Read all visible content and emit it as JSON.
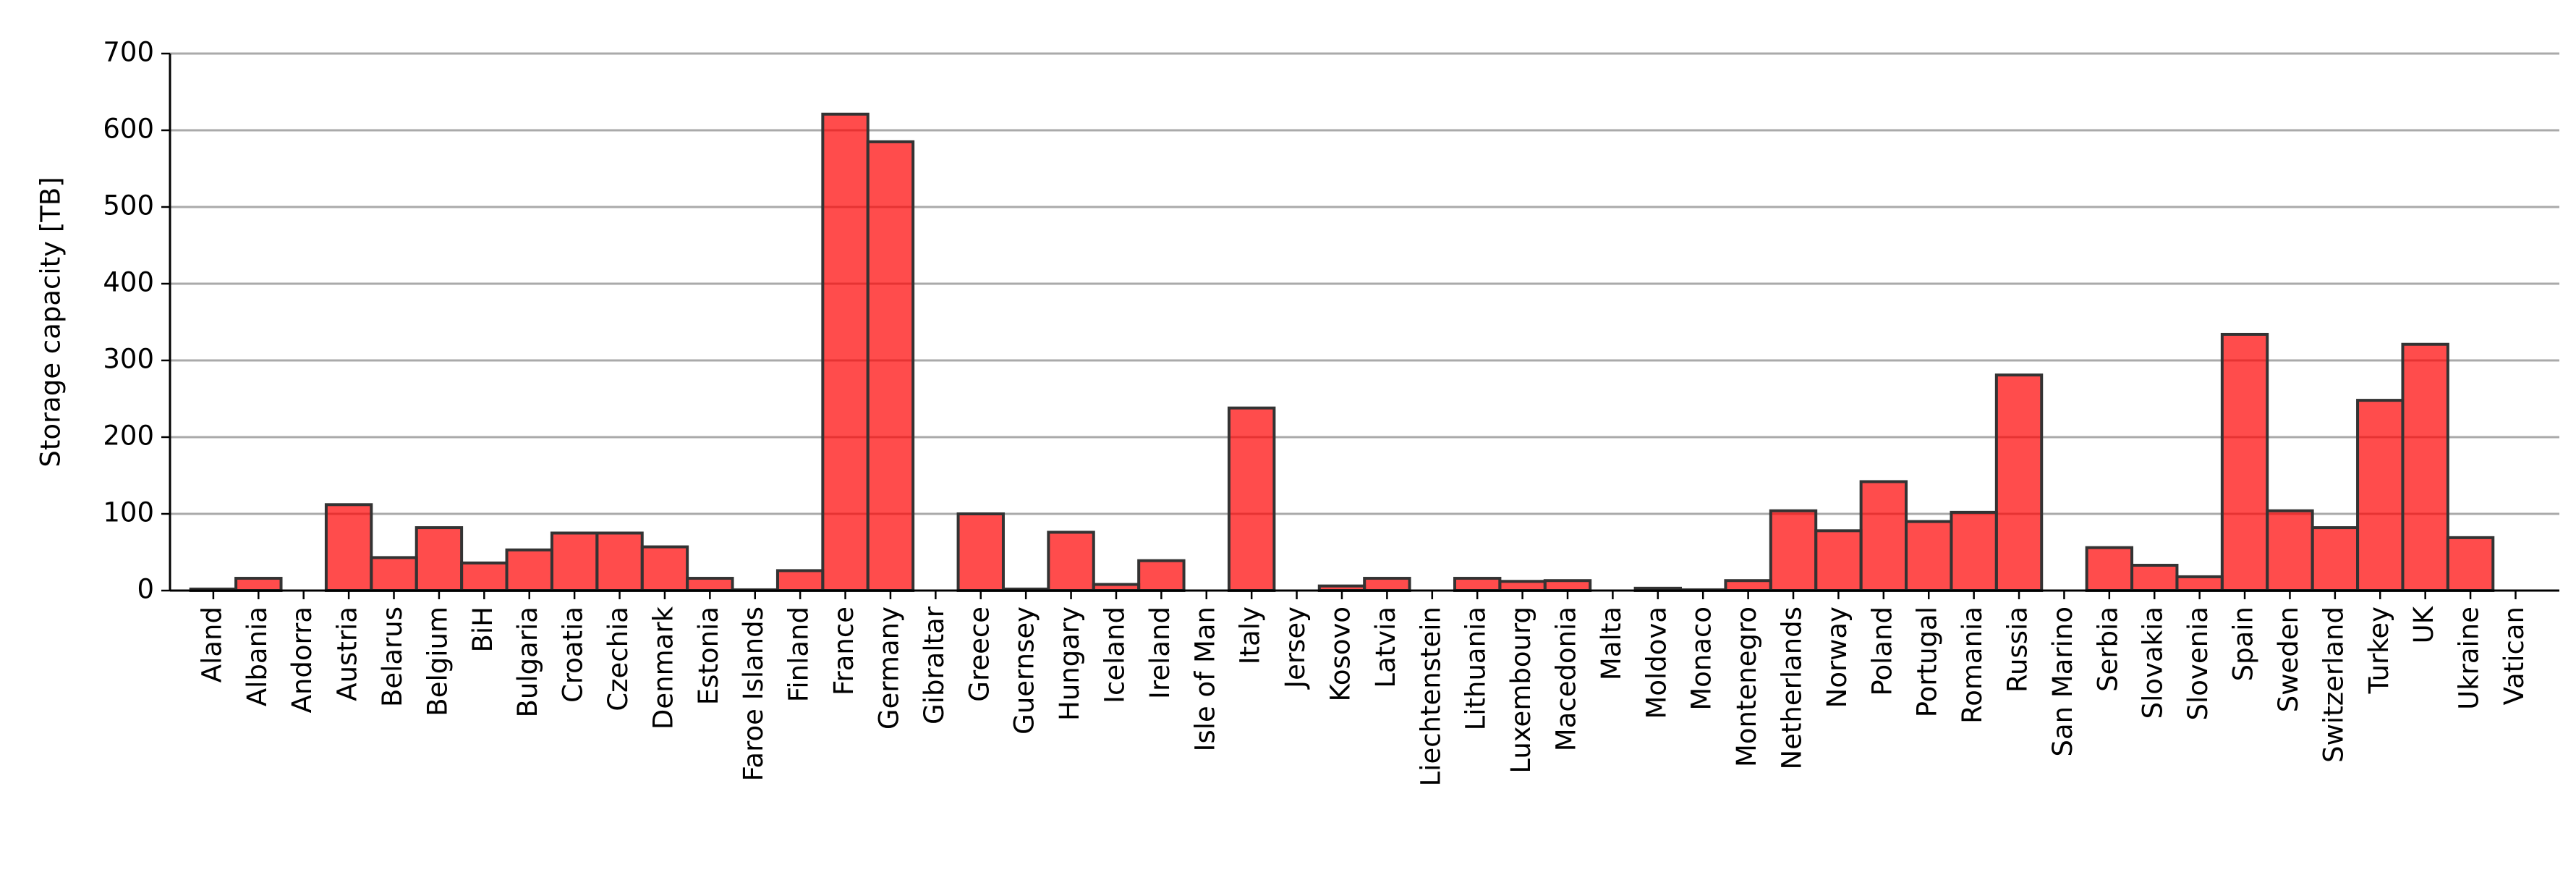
{
  "chart_data": {
    "type": "bar",
    "y_label": "Storage capacity [TB]",
    "categories": [
      "Aland",
      "Albania",
      "Andorra",
      "Austria",
      "Belarus",
      "Belgium",
      "BiH",
      "Bulgaria",
      "Croatia",
      "Czechia",
      "Denmark",
      "Estonia",
      "Faroe Islands",
      "Finland",
      "France",
      "Germany",
      "Gibraltar",
      "Greece",
      "Guernsey",
      "Hungary",
      "Iceland",
      "Ireland",
      "Isle of Man",
      "Italy",
      "Jersey",
      "Kosovo",
      "Latvia",
      "Liechtenstein",
      "Lithuania",
      "Luxembourg",
      "Macedonia",
      "Malta",
      "Moldova",
      "Monaco",
      "Montenegro",
      "Netherlands",
      "Norway",
      "Poland",
      "Portugal",
      "Romania",
      "Russia",
      "San Marino",
      "Serbia",
      "Slovakia",
      "Slovenia",
      "Spain",
      "Sweden",
      "Switzerland",
      "Turkey",
      "UK",
      "Ukraine",
      "Vatican"
    ],
    "values": [
      2,
      16,
      0,
      112,
      43,
      82,
      36,
      53,
      75,
      75,
      57,
      16,
      1,
      26,
      621,
      585,
      0,
      100,
      2,
      76,
      8,
      39,
      0,
      238,
      0,
      6,
      16,
      0,
      16,
      12,
      13,
      0,
      3,
      1,
      13,
      104,
      78,
      142,
      90,
      102,
      281,
      0,
      56,
      33,
      18,
      334,
      104,
      82,
      248,
      321,
      69,
      0
    ],
    "color": "#ff0000",
    "edge_color": "#333333",
    "ylim": [
      0,
      700
    ],
    "yticks": [
      0,
      100,
      200,
      300,
      400,
      500,
      600,
      700
    ],
    "grid": true
  }
}
